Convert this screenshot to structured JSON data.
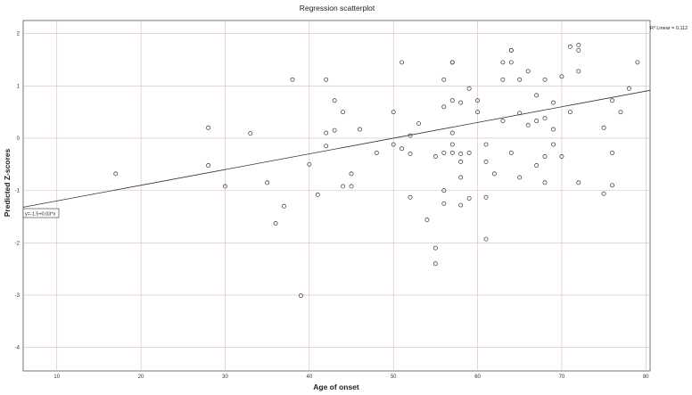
{
  "chart_data": {
    "type": "scatter",
    "title": "Regression scatterplot",
    "xlabel": "Age of onset",
    "ylabel": "Predicted Z-scores",
    "xlim": [
      6,
      80.5
    ],
    "ylim": [
      -4.45,
      2.25
    ],
    "x_ticks": [
      10,
      20,
      30,
      40,
      50,
      60,
      70,
      80
    ],
    "y_ticks": [
      2,
      1,
      0,
      -1,
      -2,
      -3,
      -4
    ],
    "x_tick_labels": [
      "10",
      "20",
      "30",
      "40",
      "50",
      "60",
      "70",
      "80"
    ],
    "y_tick_labels": [
      "2",
      "1",
      "0",
      "-1",
      "-2",
      "-3",
      "-4"
    ],
    "grid": true,
    "r2_label": "R² Linear = 0.112",
    "fit_line": {
      "intercept": -1.5,
      "slope": 0.03,
      "equation_label": "y=-1.5+0.03*x"
    },
    "points": [
      [
        17,
        -0.68
      ],
      [
        28,
        0.2
      ],
      [
        28,
        -0.52
      ],
      [
        30,
        -0.92
      ],
      [
        33,
        0.09
      ],
      [
        35,
        -0.85
      ],
      [
        36,
        -1.63
      ],
      [
        37,
        -1.3
      ],
      [
        38,
        1.12
      ],
      [
        39,
        -3.01
      ],
      [
        40,
        -0.5
      ],
      [
        41,
        -1.08
      ],
      [
        42,
        1.12
      ],
      [
        42,
        0.1
      ],
      [
        42,
        -0.15
      ],
      [
        43,
        0.72
      ],
      [
        43,
        0.15
      ],
      [
        44,
        0.5
      ],
      [
        44,
        -0.92
      ],
      [
        45,
        -0.68
      ],
      [
        45,
        -0.92
      ],
      [
        46,
        0.17
      ],
      [
        48,
        -0.28
      ],
      [
        50,
        0.5
      ],
      [
        50,
        -0.12
      ],
      [
        51,
        1.45
      ],
      [
        51,
        -0.2
      ],
      [
        52,
        0.05
      ],
      [
        52,
        -0.3
      ],
      [
        52,
        -1.13
      ],
      [
        53,
        0.28
      ],
      [
        54,
        -1.56
      ],
      [
        55,
        -0.35
      ],
      [
        55,
        -2.1
      ],
      [
        55,
        -2.4
      ],
      [
        56,
        1.12
      ],
      [
        56,
        0.6
      ],
      [
        56,
        -0.28
      ],
      [
        56,
        -1.0
      ],
      [
        56,
        -1.25
      ],
      [
        57,
        1.45
      ],
      [
        57,
        1.45
      ],
      [
        57,
        0.72
      ],
      [
        57,
        0.1
      ],
      [
        57,
        -0.12
      ],
      [
        57,
        -0.28
      ],
      [
        58,
        0.68
      ],
      [
        58,
        -0.3
      ],
      [
        58,
        -0.45
      ],
      [
        58,
        -0.75
      ],
      [
        58,
        -1.28
      ],
      [
        59,
        0.95
      ],
      [
        59,
        -0.28
      ],
      [
        59,
        -1.15
      ],
      [
        60,
        0.72
      ],
      [
        60,
        0.5
      ],
      [
        61,
        -0.12
      ],
      [
        61,
        -0.45
      ],
      [
        61,
        -1.13
      ],
      [
        61,
        -1.93
      ],
      [
        62,
        -0.68
      ],
      [
        63,
        1.45
      ],
      [
        63,
        1.12
      ],
      [
        63,
        0.33
      ],
      [
        64,
        1.68
      ],
      [
        64,
        1.68
      ],
      [
        64,
        1.45
      ],
      [
        64,
        -0.28
      ],
      [
        65,
        1.12
      ],
      [
        65,
        0.48
      ],
      [
        65,
        -0.75
      ],
      [
        66,
        1.28
      ],
      [
        66,
        0.25
      ],
      [
        67,
        0.82
      ],
      [
        67,
        0.33
      ],
      [
        67,
        -0.52
      ],
      [
        68,
        1.12
      ],
      [
        68,
        0.38
      ],
      [
        68,
        -0.35
      ],
      [
        68,
        -0.85
      ],
      [
        69,
        0.68
      ],
      [
        69,
        0.17
      ],
      [
        69,
        -0.12
      ],
      [
        70,
        1.18
      ],
      [
        70,
        -0.35
      ],
      [
        71,
        1.75
      ],
      [
        71,
        0.5
      ],
      [
        72,
        1.78
      ],
      [
        72,
        1.68
      ],
      [
        72,
        1.28
      ],
      [
        72,
        -0.85
      ],
      [
        75,
        0.2
      ],
      [
        75,
        -1.06
      ],
      [
        76,
        0.72
      ],
      [
        76,
        -0.28
      ],
      [
        76,
        -0.9
      ],
      [
        77,
        0.5
      ],
      [
        78,
        0.95
      ],
      [
        79,
        1.45
      ]
    ]
  }
}
